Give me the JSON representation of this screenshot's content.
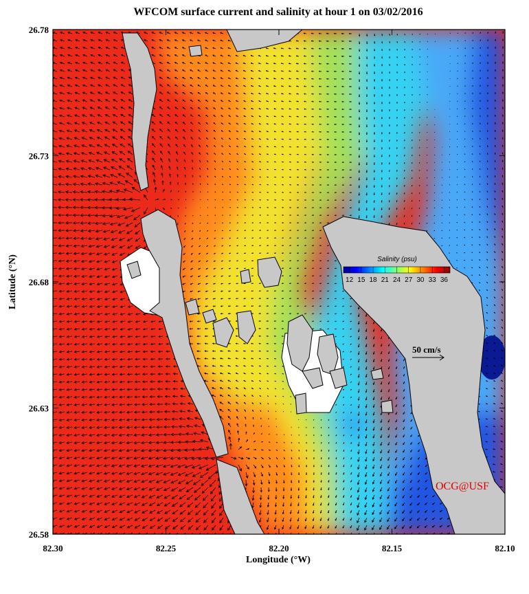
{
  "map": {
    "title": "WFCOM surface current and salinity at hour 1 on 03/02/2016",
    "x_label": "Longitude (°W)",
    "y_label": "Latitude (°N)",
    "xlim": [
      82.3,
      82.1
    ],
    "xticks": [
      {
        "value": 82.3,
        "label": "82.30"
      },
      {
        "value": 82.25,
        "label": "82.25"
      },
      {
        "value": 82.2,
        "label": "82.20"
      },
      {
        "value": 82.15,
        "label": "82.15"
      },
      {
        "value": 82.1,
        "label": "82.10"
      }
    ],
    "ylim": [
      26.58,
      26.78
    ],
    "yticks": [
      26.58,
      26.63,
      26.68,
      26.73,
      26.78
    ],
    "colorbar": {
      "title": "Salinity (psu)",
      "colormap": "jet",
      "lim": [
        10.5,
        37.5
      ],
      "ticks": [
        12,
        15,
        18,
        21,
        24,
        27,
        30,
        33,
        36
      ]
    },
    "scale_label": "50 cm/s",
    "credit": "OCG@USF"
  }
}
